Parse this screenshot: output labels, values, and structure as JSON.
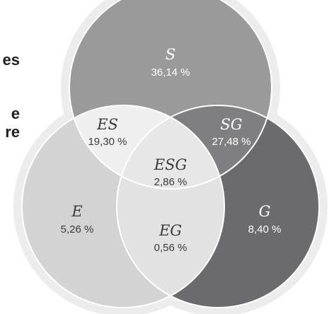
{
  "left_fragments": [
    "es",
    "e",
    "re"
  ],
  "regions": {
    "s": {
      "label": "S",
      "value": "36,14 %",
      "fill": "#9a9a9a",
      "text_color": "#ffffff"
    },
    "g": {
      "label": "G",
      "value": "8,40 %",
      "fill": "#6b6b6d",
      "text_color": "#ffffff"
    },
    "e": {
      "label": "E",
      "value": "5,26 %",
      "fill": "#d3d3d3",
      "text_color": "#3a3a3a"
    },
    "es": {
      "label": "ES",
      "value": "19,30 %",
      "fill": "#efefef",
      "text_color": "#3a3a3a"
    },
    "sg": {
      "label": "SG",
      "value": "27,48 %",
      "fill": "#7f7f81",
      "text_color": "#ffffff"
    },
    "eg": {
      "label": "EG",
      "value": "0,56 %",
      "fill": "#e2e2e2",
      "text_color": "#3a3a3a"
    },
    "esg": {
      "label": "ESG",
      "value": "2,86 %",
      "fill": "#e7e7e7",
      "text_color": "#3a3a3a"
    }
  },
  "colors": {
    "halo": "#ececec",
    "outline": "#ffffff",
    "left_text": "#1f1f1f"
  }
}
